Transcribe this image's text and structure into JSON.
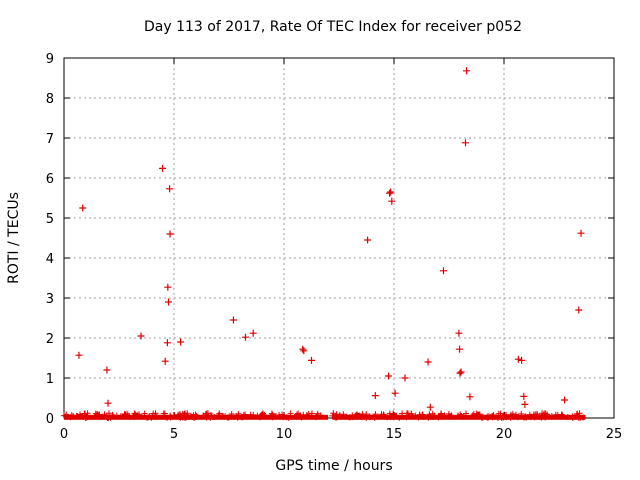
{
  "chart_data": {
    "type": "scatter",
    "title": "Day 113 of 2017, Rate Of TEC Index for receiver p052",
    "xlabel": "GPS time / hours",
    "ylabel": "ROTI / TECUs",
    "xlim": [
      0,
      25
    ],
    "ylim": [
      0,
      9
    ],
    "xticks": [
      0,
      5,
      10,
      15,
      20,
      25
    ],
    "yticks": [
      0,
      1,
      2,
      3,
      4,
      5,
      6,
      7,
      8,
      9
    ],
    "grid": true,
    "marker": "+",
    "color": "#e00000",
    "baseline_band": {
      "description": "dense points near zero",
      "segments": [
        [
          0.0,
          12.0
        ],
        [
          12.2,
          23.7
        ]
      ],
      "y_range": [
        0.0,
        0.12
      ]
    },
    "points": [
      [
        0.68,
        1.57
      ],
      [
        0.85,
        5.25
      ],
      [
        1.95,
        1.2
      ],
      [
        2.0,
        0.37
      ],
      [
        3.5,
        2.05
      ],
      [
        4.48,
        6.24
      ],
      [
        4.6,
        1.42
      ],
      [
        4.7,
        1.88
      ],
      [
        4.72,
        3.27
      ],
      [
        4.75,
        2.9
      ],
      [
        4.8,
        5.73
      ],
      [
        4.82,
        4.6
      ],
      [
        5.3,
        1.9
      ],
      [
        7.7,
        2.45
      ],
      [
        8.25,
        2.02
      ],
      [
        8.6,
        2.12
      ],
      [
        10.85,
        1.72
      ],
      [
        10.9,
        1.68
      ],
      [
        11.25,
        1.44
      ],
      [
        13.8,
        4.45
      ],
      [
        14.15,
        0.56
      ],
      [
        14.75,
        1.05
      ],
      [
        14.8,
        5.62
      ],
      [
        14.85,
        5.65
      ],
      [
        14.9,
        5.42
      ],
      [
        15.05,
        0.62
      ],
      [
        15.5,
        1.0
      ],
      [
        16.55,
        1.4
      ],
      [
        16.65,
        0.27
      ],
      [
        17.25,
        3.68
      ],
      [
        17.95,
        2.12
      ],
      [
        17.98,
        1.72
      ],
      [
        18.0,
        1.12
      ],
      [
        18.05,
        1.15
      ],
      [
        18.25,
        6.88
      ],
      [
        18.3,
        8.68
      ],
      [
        18.45,
        0.53
      ],
      [
        20.65,
        1.47
      ],
      [
        20.8,
        1.44
      ],
      [
        20.9,
        0.54
      ],
      [
        20.95,
        0.34
      ],
      [
        22.75,
        0.45
      ],
      [
        23.4,
        2.7
      ],
      [
        23.5,
        4.62
      ]
    ]
  }
}
